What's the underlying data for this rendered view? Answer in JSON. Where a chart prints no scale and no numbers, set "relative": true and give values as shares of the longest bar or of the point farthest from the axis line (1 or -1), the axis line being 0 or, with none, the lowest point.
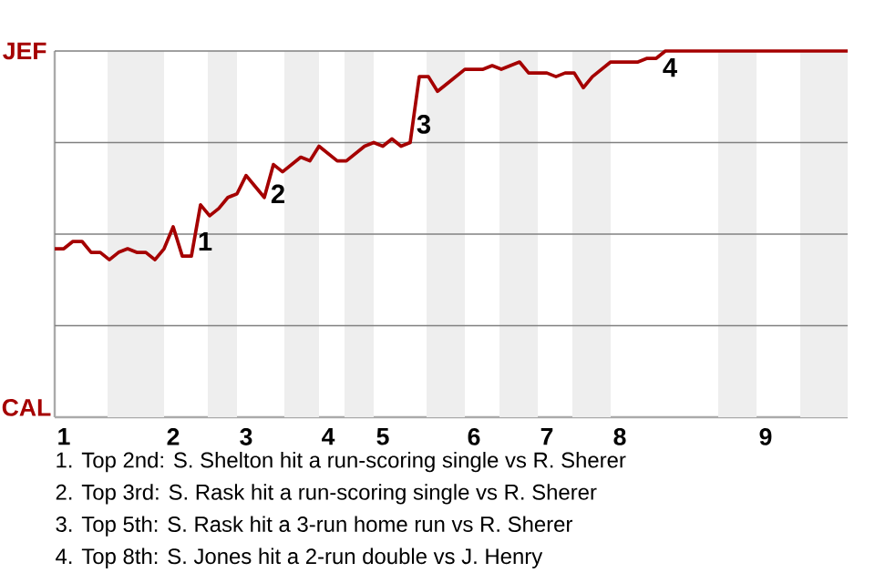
{
  "chart_data": {
    "type": "line",
    "color": "#a50000",
    "relative": true,
    "categories": [
      null,
      "1",
      null,
      null,
      null,
      null,
      null,
      null,
      null,
      null,
      null,
      null,
      null,
      "2",
      null,
      null,
      null,
      null,
      null,
      null,
      null,
      "3",
      null,
      null,
      null,
      null,
      null,
      null,
      null,
      null,
      "4",
      null,
      null,
      null,
      null,
      null,
      "5",
      null,
      null,
      null,
      null,
      null,
      null,
      null,
      null,
      null,
      "6",
      null,
      null,
      null,
      null,
      null,
      null,
      null,
      "7",
      null,
      null,
      null,
      null,
      null,
      null,
      null,
      "8",
      null,
      null,
      null,
      null,
      null,
      null,
      null,
      null,
      null,
      null,
      null,
      null,
      null,
      null,
      null,
      "9",
      null,
      null,
      null,
      null,
      null,
      null,
      null,
      null,
      null
    ],
    "values": [
      0.46,
      0.46,
      0.48,
      0.48,
      0.45,
      0.45,
      0.43,
      0.45,
      0.46,
      0.45,
      0.45,
      0.43,
      0.46,
      0.52,
      0.44,
      0.44,
      0.58,
      0.55,
      0.57,
      0.6,
      0.61,
      0.66,
      0.63,
      0.6,
      0.69,
      0.67,
      0.69,
      0.71,
      0.7,
      0.74,
      0.72,
      0.7,
      0.7,
      0.72,
      0.74,
      0.75,
      0.74,
      0.76,
      0.74,
      0.75,
      0.93,
      0.93,
      0.89,
      0.91,
      0.93,
      0.95,
      0.95,
      0.95,
      0.96,
      0.95,
      0.96,
      0.97,
      0.94,
      0.94,
      0.94,
      0.93,
      0.94,
      0.94,
      0.9,
      0.93,
      0.95,
      0.97,
      0.97,
      0.97,
      0.97,
      0.98,
      0.98,
      1,
      1,
      1,
      1,
      1,
      1,
      1,
      1,
      1,
      1,
      1,
      1,
      1,
      1,
      1,
      1,
      1,
      1,
      1,
      1,
      1
    ],
    "ref_lines": [
      {
        "axis": "y",
        "value": 0.25,
        "color": "#808080"
      },
      {
        "axis": "y",
        "value": 0.5,
        "color": "#808080"
      },
      {
        "axis": "y",
        "value": 0.75,
        "color": "#808080"
      },
      {
        "axis": "y",
        "value": 1,
        "color": "#808080"
      }
    ],
    "annotations": [
      "JEF",
      "CAL",
      "1",
      "2",
      "3",
      "4",
      "1. Top 2nd: S. Shelton hit a run-scoring single vs R. Sherer",
      "2. Top 3rd: S. Rask hit a run-scoring single vs R. Sherer",
      "3. Top 5th: S. Rask hit a 3-run home run vs R. Sherer",
      "4. Top 8th: S. Jones hit a 2-run double vs J. Henry"
    ]
  }
}
